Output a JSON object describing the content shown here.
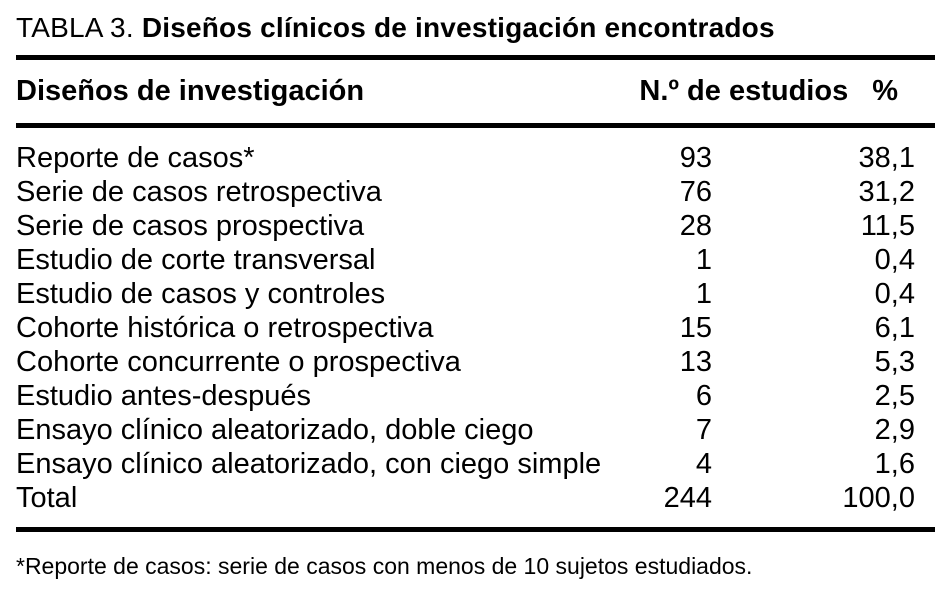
{
  "title": {
    "prefix": "TABLA 3.",
    "main": "Diseños clínicos de investigación encontrados"
  },
  "table": {
    "columns": {
      "design": "Diseños de investigación",
      "n": "N.º de estudios",
      "pct": "%"
    },
    "rows": [
      {
        "design": "Reporte de casos*",
        "n": "93",
        "pct": "38,1"
      },
      {
        "design": "Serie de casos retrospectiva",
        "n": "76",
        "pct": "31,2"
      },
      {
        "design": "Serie de casos prospectiva",
        "n": "28",
        "pct": "11,5"
      },
      {
        "design": "Estudio de corte transversal",
        "n": "1",
        "pct": "0,4"
      },
      {
        "design": "Estudio de casos y controles",
        "n": "1",
        "pct": "0,4"
      },
      {
        "design": "Cohorte histórica o retrospectiva",
        "n": "15",
        "pct": "6,1"
      },
      {
        "design": "Cohorte concurrente o prospectiva",
        "n": "13",
        "pct": "5,3"
      },
      {
        "design": "Estudio antes-después",
        "n": "6",
        "pct": "2,5"
      },
      {
        "design": "Ensayo clínico aleatorizado, doble ciego",
        "n": "7",
        "pct": "2,9"
      },
      {
        "design": "Ensayo clínico aleatorizado, con ciego simple",
        "n": "4",
        "pct": "1,6"
      },
      {
        "design": "Total",
        "n": "244",
        "pct": "100,0"
      }
    ]
  },
  "footnote": "*Reporte de casos: serie de casos con menos de 10 sujetos estudiados.",
  "colors": {
    "background": "#ffffff",
    "text": "#000000",
    "rule": "#000000"
  }
}
